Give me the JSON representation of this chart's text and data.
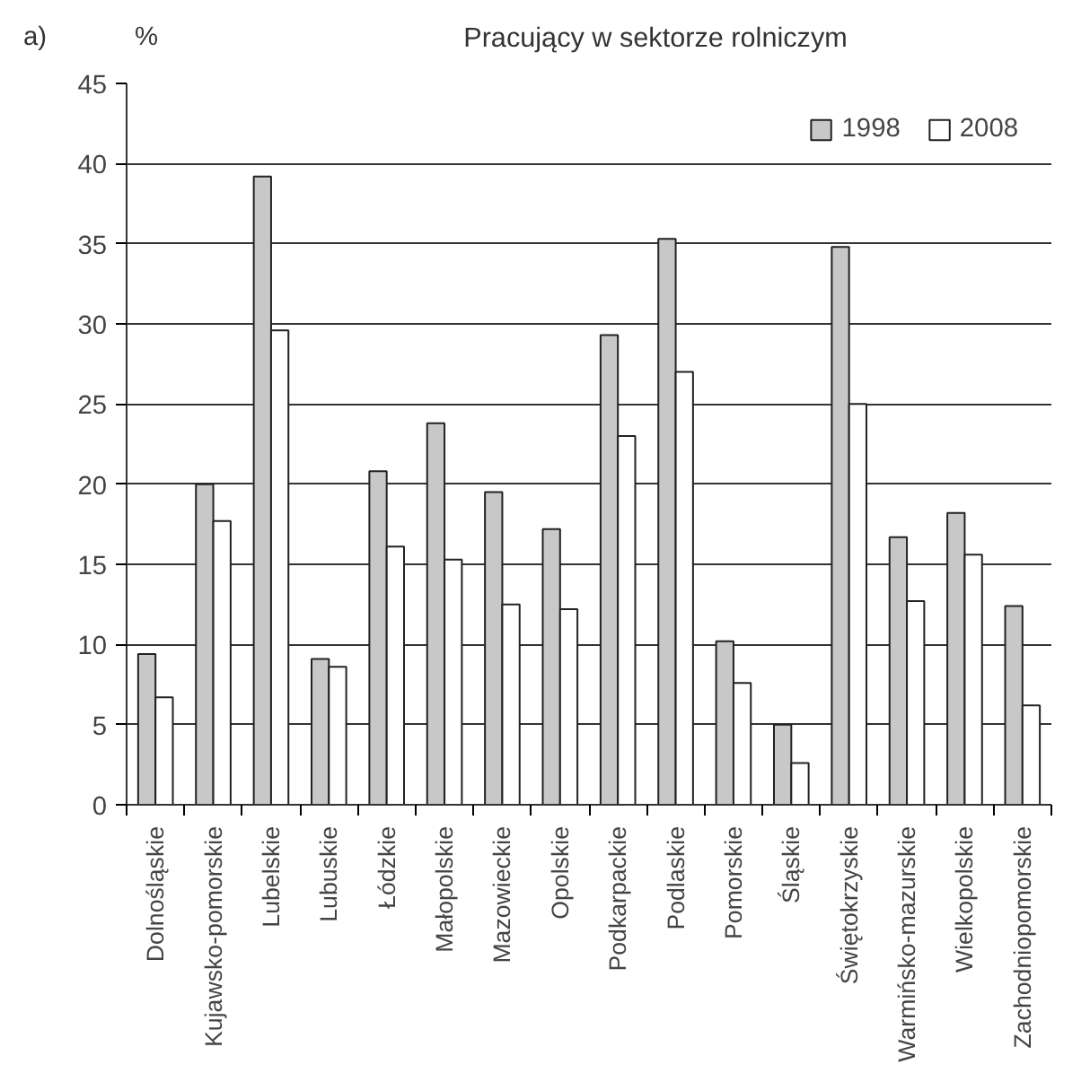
{
  "chart_data": {
    "type": "bar",
    "title": "Pracujący w sektorze rolniczym",
    "ylabel": "%",
    "annotations": [
      "a)"
    ],
    "categories": [
      "Dolnośląskie",
      "Kujawsko-pomorskie",
      "Lubelskie",
      "Lubuskie",
      "Łódzkie",
      "Małopolskie",
      "Mazowieckie",
      "Opolskie",
      "Podkarpackie",
      "Podlaskie",
      "Pomorskie",
      "Śląskie",
      "Świętokrzyskie",
      "Warmińsko-mazurskie",
      "Wielkopolskie",
      "Zachodniopomorskie"
    ],
    "series": [
      {
        "name": "1998",
        "color": "#c8c8c8",
        "values": [
          9.4,
          20.0,
          39.2,
          9.1,
          20.8,
          23.8,
          19.5,
          17.2,
          29.3,
          35.3,
          10.2,
          5.0,
          34.8,
          16.7,
          18.2,
          12.4
        ]
      },
      {
        "name": "2008",
        "color": "#ffffff",
        "values": [
          6.7,
          17.7,
          29.6,
          8.6,
          16.1,
          15.3,
          12.5,
          12.2,
          23.0,
          27.0,
          7.6,
          2.6,
          25.0,
          12.7,
          15.6,
          6.2
        ]
      }
    ],
    "ylim": [
      0,
      45
    ],
    "yticks": [
      0,
      5,
      10,
      15,
      20,
      25,
      30,
      35,
      40,
      45
    ],
    "grid": "y",
    "legend": "top right"
  }
}
